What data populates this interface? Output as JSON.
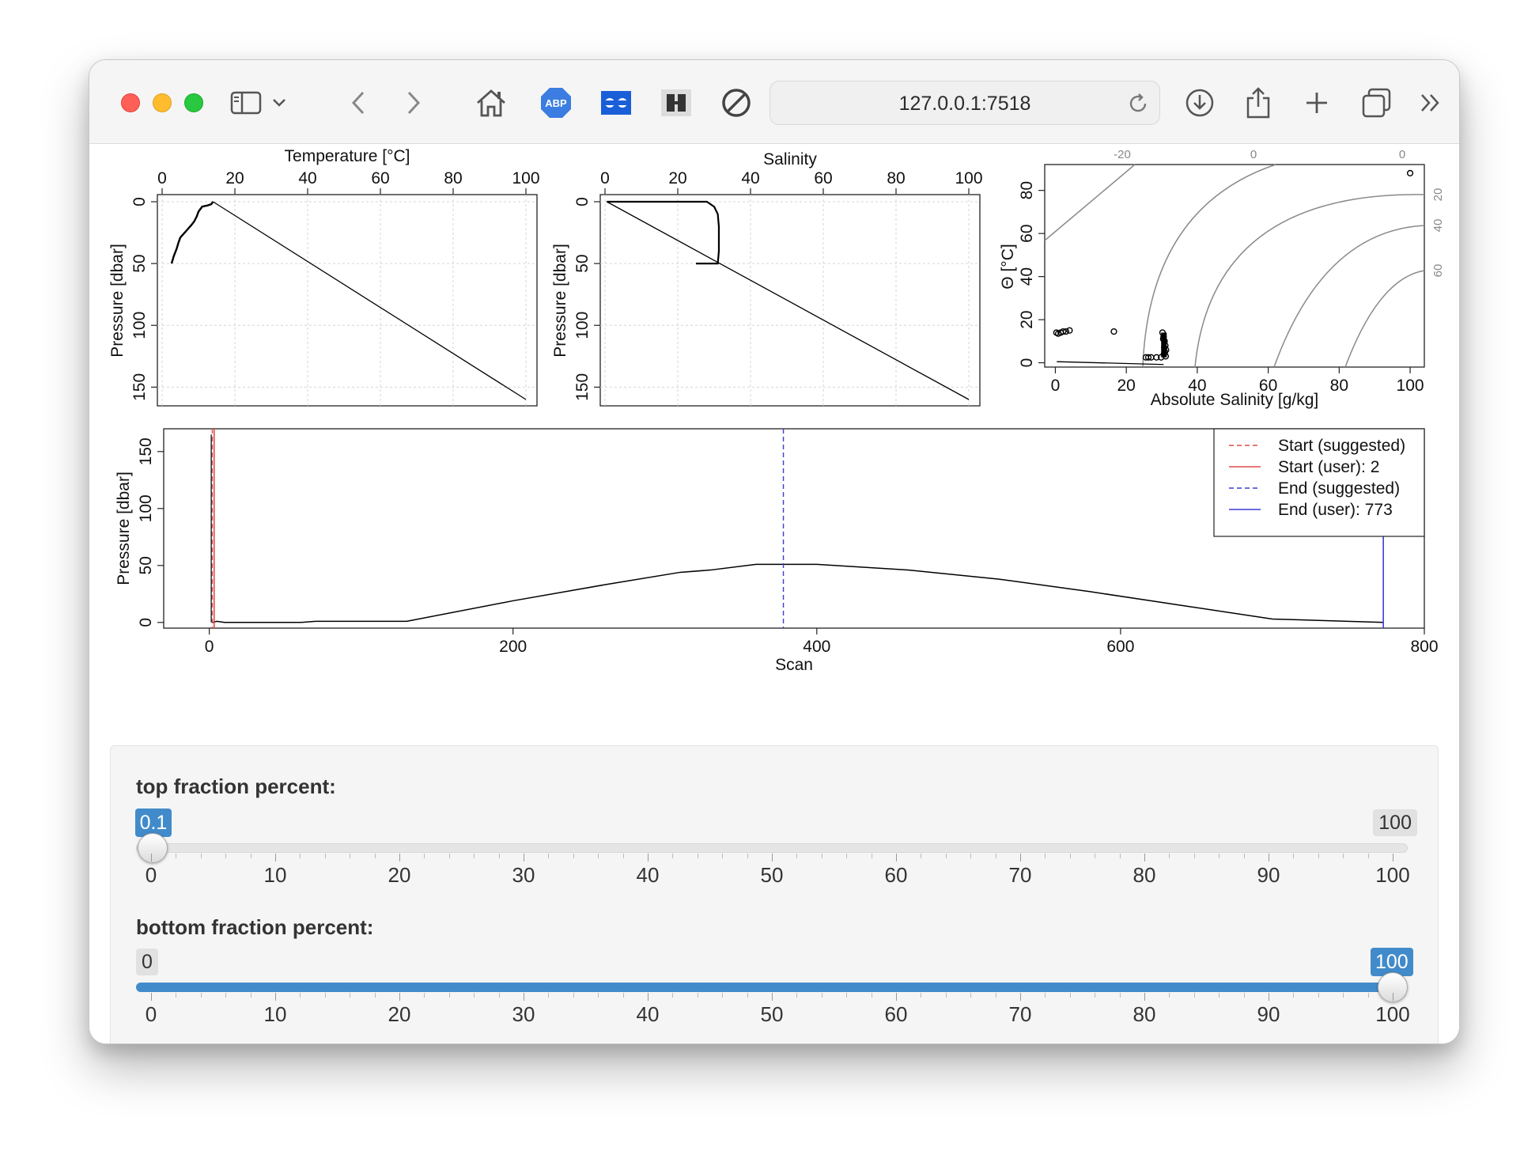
{
  "browser": {
    "url": "127.0.0.1:7518",
    "icons": [
      "sidebar-icon",
      "chevron-down-icon",
      "back-icon",
      "forward-icon",
      "home-icon",
      "adblock-icon",
      "extension-icon",
      "reader-icon",
      "block-icon",
      "download-icon",
      "share-icon",
      "new-tab-icon",
      "tabs-icon",
      "more-icon"
    ],
    "adblock_label": "ABP"
  },
  "charts": {
    "temperature": {
      "type": "line",
      "title": "Temperature [°C]",
      "ylabel": "Pressure [dbar]",
      "xlim": [
        0,
        100
      ],
      "ylim": [
        160,
        0
      ],
      "xticks": [
        "0",
        "20",
        "40",
        "60",
        "80",
        "100"
      ],
      "yticks": [
        "0",
        "50",
        "100",
        "150"
      ],
      "profile_x": [
        14,
        13.5,
        12.5,
        11,
        10,
        9.5,
        8.8,
        8,
        6.5,
        5,
        4.5,
        4,
        3.2,
        2.6
      ],
      "profile_y": [
        0,
        2,
        3,
        4,
        8,
        12,
        16,
        19,
        24,
        29,
        33,
        38,
        44,
        50
      ],
      "line_x": [
        14,
        100
      ],
      "line_y": [
        0,
        160
      ]
    },
    "salinity": {
      "type": "line",
      "title": "Salinity",
      "ylabel": "Pressure [dbar]",
      "xlim": [
        0,
        100
      ],
      "ylim": [
        160,
        0
      ],
      "xticks": [
        "0",
        "20",
        "40",
        "60",
        "80",
        "100"
      ],
      "yticks": [
        "0",
        "50",
        "100",
        "150"
      ],
      "profile_x": [
        0.5,
        28,
        30,
        31,
        31.3,
        31.3,
        31.0,
        25
      ],
      "profile_y": [
        0,
        0,
        4,
        10,
        20,
        40,
        50,
        50
      ],
      "line_x": [
        0.5,
        100
      ],
      "line_y": [
        0,
        160
      ]
    },
    "ts": {
      "type": "scatter",
      "xlabel": "Absolute Salinity [g/kg]",
      "ylabel": "Θ [°C]",
      "xlim": [
        -3,
        104
      ],
      "ylim": [
        -2,
        92
      ],
      "xticks": [
        "0",
        "20",
        "40",
        "60",
        "80",
        "100"
      ],
      "yticks": [
        "0",
        "20",
        "40",
        "60",
        "80"
      ],
      "top_labels": [
        "-20",
        "0",
        "0"
      ],
      "right_labels": [
        "20",
        "40",
        "60"
      ],
      "points_x": [
        0.3,
        0.8,
        1.5,
        2.2,
        3.0,
        4.0,
        16.5,
        25.5,
        26.2,
        27.0,
        28.5,
        29.8,
        30.2,
        30.5,
        30.8,
        31.0,
        31.2,
        30.6,
        30.9,
        31.1,
        30.4,
        30.7,
        100
      ],
      "points_y": [
        14,
        13.5,
        14,
        14.5,
        14.5,
        15,
        14.5,
        2.5,
        2.5,
        2.5,
        2.5,
        2.5,
        14,
        12,
        10,
        8,
        6,
        4,
        5,
        3,
        11,
        7,
        88
      ]
    },
    "scan": {
      "type": "line",
      "xlabel": "Scan",
      "ylabel": "Pressure [dbar]",
      "xlim": [
        -30,
        800
      ],
      "ylim": [
        -5,
        170
      ],
      "xticks": [
        "0",
        "200",
        "400",
        "600",
        "800"
      ],
      "yticks": [
        "0",
        "50",
        "100",
        "150"
      ],
      "x": [
        2,
        5,
        10,
        60,
        70,
        130,
        200,
        260,
        310,
        330,
        360,
        400,
        460,
        520,
        580,
        640,
        700,
        773
      ],
      "y": [
        0,
        1,
        0,
        0,
        1,
        1,
        19,
        33,
        44,
        46,
        51,
        51,
        46,
        38,
        27,
        15,
        3,
        0
      ],
      "start_suggested": 2,
      "start_user": 2,
      "end_suggested": 378,
      "end_user": 773,
      "legend": [
        {
          "label": "Start (suggested)",
          "color": "#df4b4b",
          "dashed": true
        },
        {
          "label": "Start (user): 2",
          "color": "#df4b4b",
          "dashed": false
        },
        {
          "label": "End (suggested)",
          "color": "#3b3bd8",
          "dashed": true
        },
        {
          "label": "End (user): 773",
          "color": "#3b3bd8",
          "dashed": false
        }
      ]
    }
  },
  "sliders": [
    {
      "label": "top fraction percent:",
      "min": "0",
      "max": "100",
      "value": "0.1",
      "value_num": 0.1,
      "fill": false
    },
    {
      "label": "bottom fraction percent:",
      "min": "0",
      "max": "100",
      "value": "100",
      "value_num": 100,
      "fill": true
    }
  ],
  "slider_ticks": [
    "0",
    "10",
    "20",
    "30",
    "40",
    "50",
    "60",
    "70",
    "80",
    "90",
    "100"
  ]
}
